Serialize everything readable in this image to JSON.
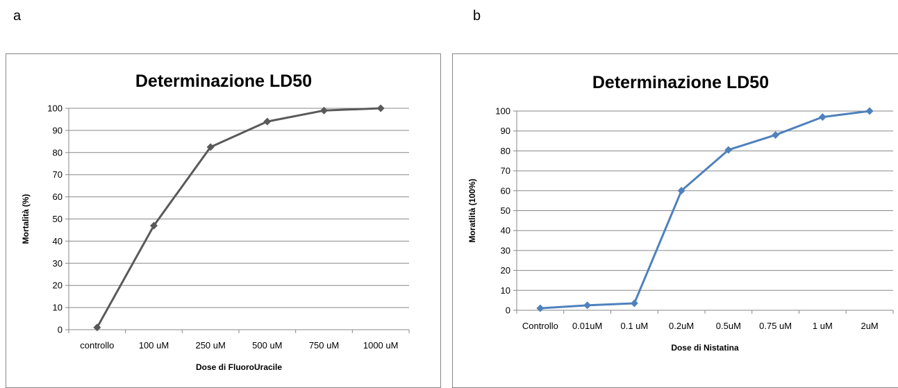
{
  "panels": {
    "a_letter": "a",
    "b_letter": "b"
  },
  "chart_data": [
    {
      "type": "line",
      "title": "Determinazione LD50",
      "xlabel": "Dose di FluoroUracile",
      "ylabel": "Mortalità (%)",
      "categories": [
        "controllo",
        "100 uM",
        "250 uM",
        "500 uM",
        "750 uM",
        "1000 uM"
      ],
      "series": [
        {
          "values": [
            1,
            47,
            82.5,
            94,
            99,
            100
          ]
        }
      ],
      "ylim": [
        0,
        100
      ],
      "yticks": [
        0,
        10,
        20,
        30,
        40,
        50,
        60,
        70,
        80,
        90,
        100
      ],
      "grid": true,
      "legend": "none",
      "color": "#595959"
    },
    {
      "type": "line",
      "title": "Determinazione LD50",
      "xlabel": "Dose di Nistatina",
      "ylabel": "Moratlità (100%)",
      "categories": [
        "Controllo",
        "0.01uM",
        "0.1 uM",
        "0.2uM",
        "0.5uM",
        "0.75 uM",
        "1 uM",
        "2uM"
      ],
      "series": [
        {
          "values": [
            1,
            2.5,
            3.5,
            60,
            80.5,
            88,
            97,
            100
          ]
        }
      ],
      "ylim": [
        0,
        100
      ],
      "yticks": [
        0,
        10,
        20,
        30,
        40,
        50,
        60,
        70,
        80,
        90,
        100
      ],
      "grid": true,
      "legend": "none",
      "color": "#4f81bd"
    }
  ]
}
